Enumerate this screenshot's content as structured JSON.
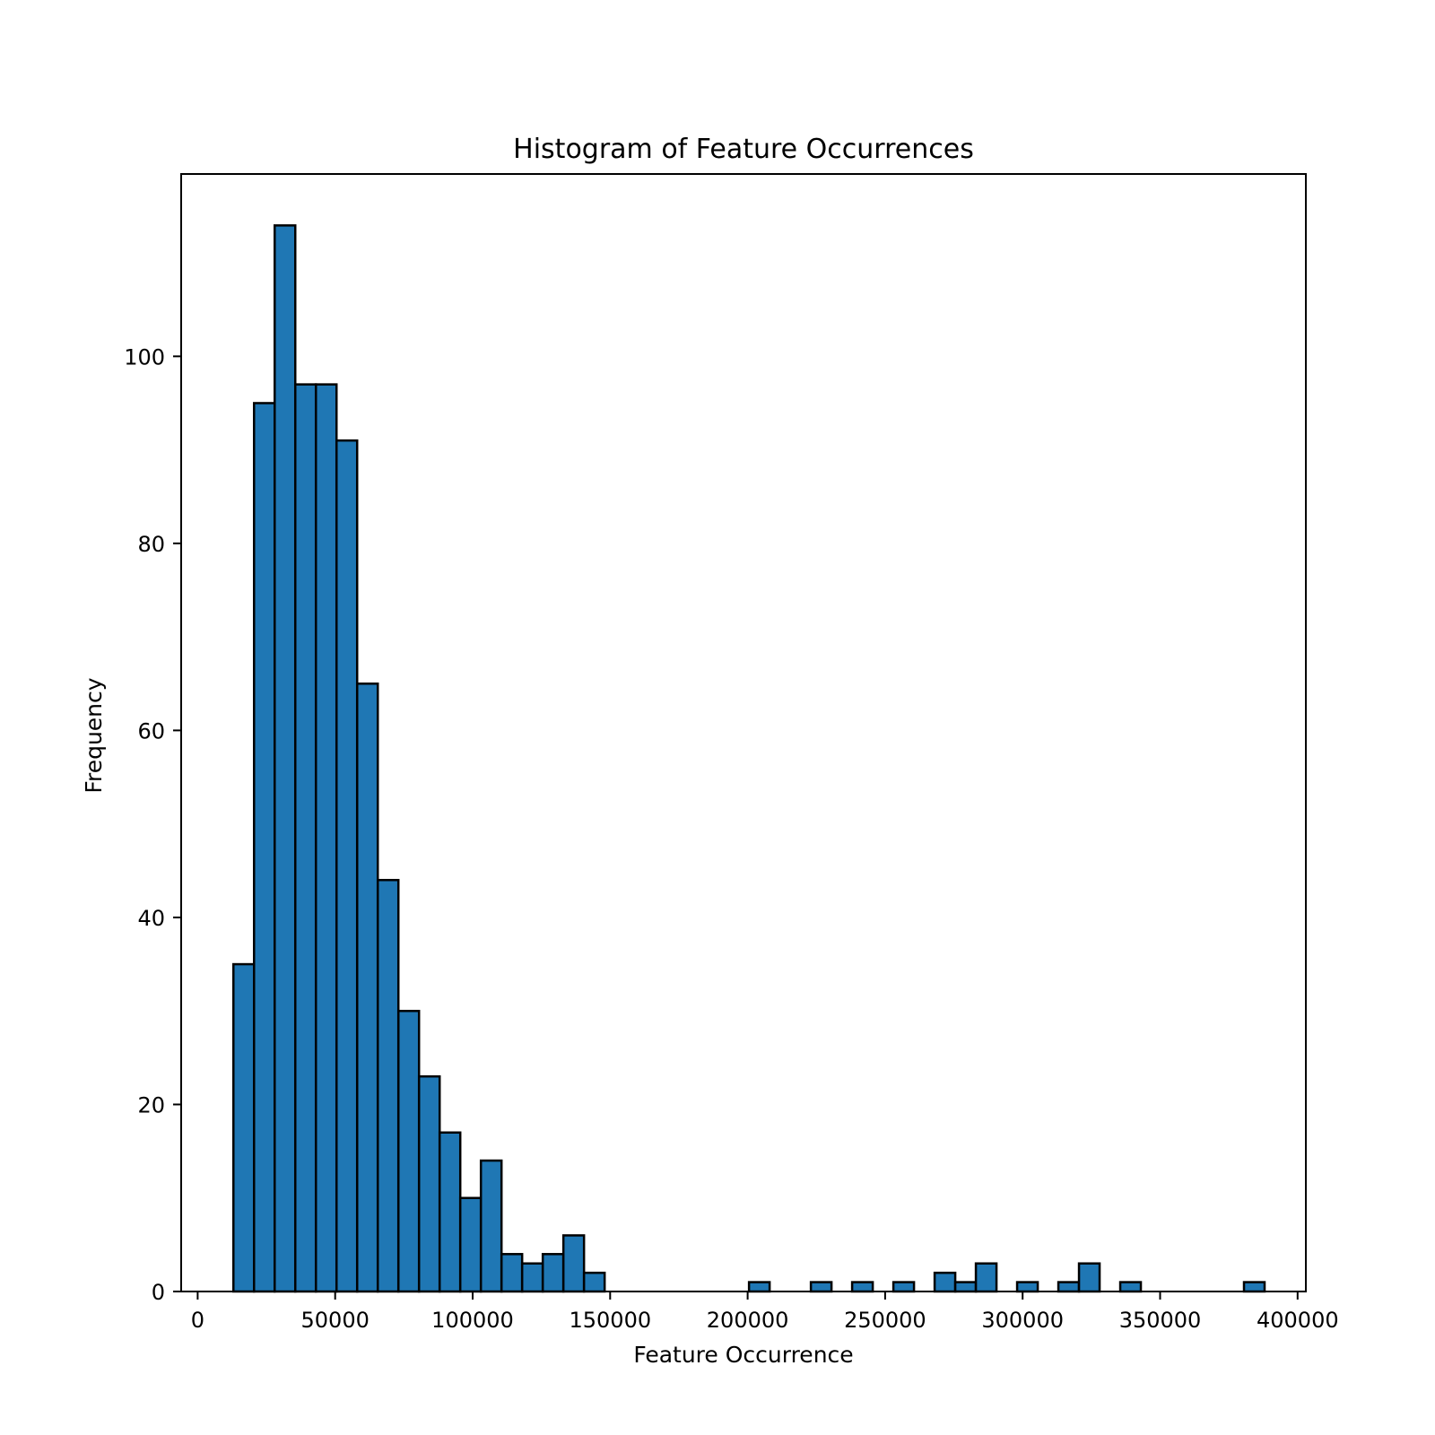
{
  "chart_data": {
    "type": "bar",
    "title": "Histogram of Feature Occurrences",
    "xlabel": "Feature Occurrence",
    "ylabel": "Frequency",
    "xlim": [
      -6000,
      403000
    ],
    "ylim": [
      0,
      119.5
    ],
    "grid": false,
    "bin_start": 13000,
    "bin_width": 7500,
    "values": [
      35,
      95,
      114,
      97,
      97,
      91,
      65,
      44,
      30,
      23,
      17,
      10,
      14,
      4,
      3,
      4,
      6,
      2,
      0,
      0,
      0,
      0,
      0,
      0,
      0,
      1,
      0,
      0,
      1,
      0,
      1,
      0,
      1,
      0,
      2,
      1,
      3,
      0,
      1,
      0,
      1,
      3,
      0,
      1,
      0,
      0,
      0,
      0,
      0,
      1
    ],
    "xticks": [
      0,
      50000,
      100000,
      150000,
      200000,
      250000,
      300000,
      350000,
      400000
    ],
    "xtick_labels": [
      "0",
      "50000",
      "100000",
      "150000",
      "200000",
      "250000",
      "300000",
      "350000",
      "400000"
    ],
    "yticks": [
      0,
      20,
      40,
      60,
      80,
      100
    ],
    "ytick_labels": [
      "0",
      "20",
      "40",
      "60",
      "80",
      "100"
    ],
    "colors": {
      "bar_fill": "#1f77b4",
      "bar_edge": "#000000"
    }
  }
}
